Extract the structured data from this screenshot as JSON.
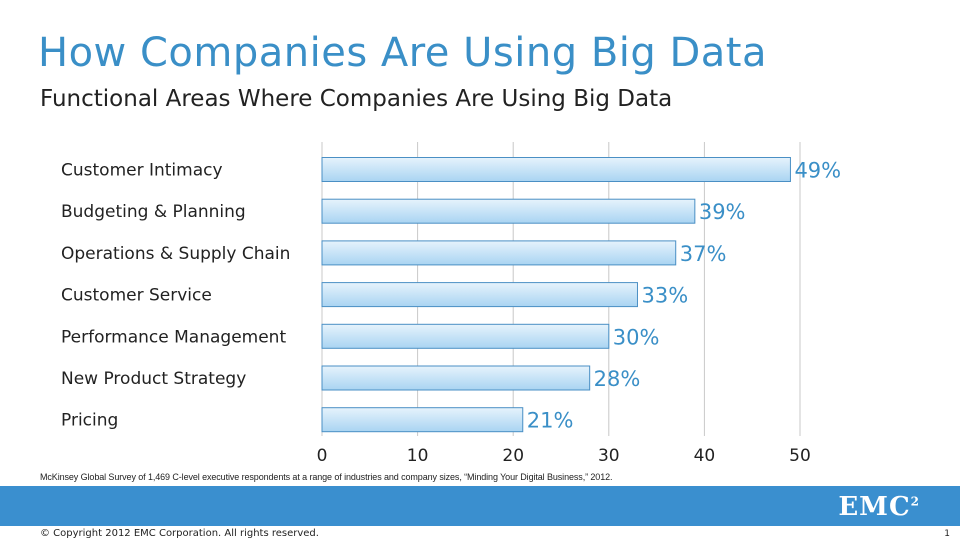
{
  "slide": {
    "title": "How Companies Are Using Big Data",
    "subtitle": "Functional Areas Where Companies Are Using Big Data",
    "source": "McKinsey Global Survey of 1,469 C-level executive respondents at a range of industries and company sizes, “Minding Your Digital Business,” 2012.",
    "copyright": "© Copyright 2012 EMC Corporation. All rights reserved.",
    "page_number": "1",
    "logo_text": "EMC",
    "logo_sup": "2"
  },
  "colors": {
    "title": "#3a8fc7",
    "label": "#3a8fc7",
    "bar_top": "#e6f3fc",
    "bar_bottom": "#a9d4f2",
    "bar_stroke": "#4a8fc4",
    "grid": "#c8c8c8",
    "footer": "#3a8fcf"
  },
  "chart_data": {
    "type": "bar",
    "orientation": "horizontal",
    "categories": [
      "Customer Intimacy",
      "Budgeting & Planning",
      "Operations & Supply Chain",
      "Customer Service",
      "Performance Management",
      "New Product Strategy",
      "Pricing"
    ],
    "values": [
      49,
      39,
      37,
      33,
      30,
      28,
      21
    ],
    "data_labels": [
      "49%",
      "39%",
      "37%",
      "33%",
      "30%",
      "28%",
      "21%"
    ],
    "xlim": [
      0,
      50
    ],
    "xticks": [
      0,
      10,
      20,
      30,
      40,
      50
    ],
    "grid": true
  }
}
